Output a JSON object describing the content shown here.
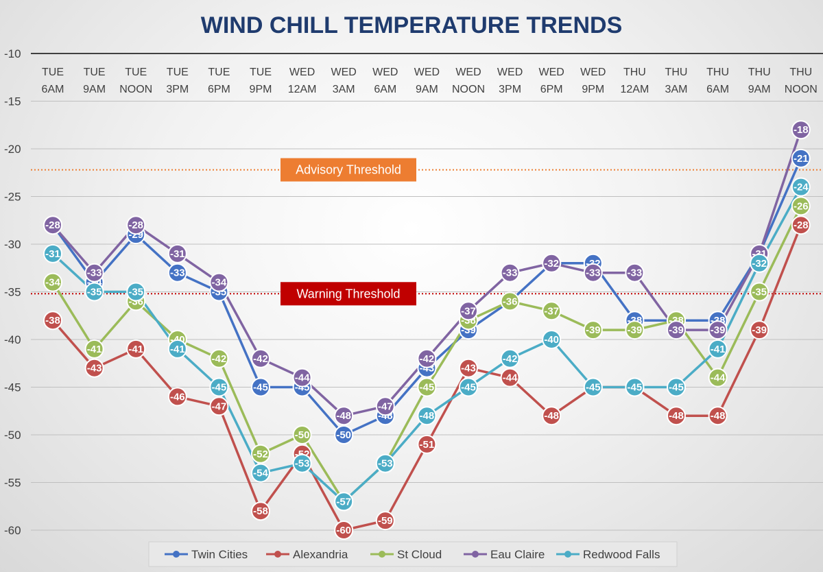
{
  "chart_data": {
    "type": "line",
    "title": "WIND CHILL TEMPERATURE TRENDS",
    "xlabel": "",
    "ylabel": "",
    "ylim": [
      -60,
      -10
    ],
    "yticks": [
      -10,
      -15,
      -20,
      -25,
      -30,
      -35,
      -40,
      -45,
      -50,
      -55,
      -60
    ],
    "grid": true,
    "legend_position": "bottom",
    "categories": [
      [
        "TUE",
        "6AM"
      ],
      [
        "TUE",
        "9AM"
      ],
      [
        "TUE",
        "NOON"
      ],
      [
        "TUE",
        "3PM"
      ],
      [
        "TUE",
        "6PM"
      ],
      [
        "TUE",
        "9PM"
      ],
      [
        "WED",
        "12AM"
      ],
      [
        "WED",
        "3AM"
      ],
      [
        "WED",
        "6AM"
      ],
      [
        "WED",
        "9AM"
      ],
      [
        "WED",
        "NOON"
      ],
      [
        "WED",
        "3PM"
      ],
      [
        "WED",
        "6PM"
      ],
      [
        "WED",
        "9PM"
      ],
      [
        "THU",
        "12AM"
      ],
      [
        "THU",
        "3AM"
      ],
      [
        "THU",
        "6AM"
      ],
      [
        "THU",
        "9AM"
      ],
      [
        "THU",
        "NOON"
      ]
    ],
    "thresholds": [
      {
        "label": "Advisory Threshold",
        "value": -22.2,
        "color": "#ed7d31"
      },
      {
        "label": "Warning Threshold",
        "value": -35.2,
        "color": "#c00000"
      }
    ],
    "series": [
      {
        "name": "Twin Cities",
        "color": "#4472c4",
        "values": [
          -28,
          -34,
          -29,
          -33,
          -35,
          -45,
          -45,
          -50,
          -48,
          -43,
          -39,
          -36,
          -32,
          -32,
          -38,
          -38,
          -38,
          -31,
          -21
        ]
      },
      {
        "name": "Alexandria",
        "color": "#c0504d",
        "values": [
          -38,
          -43,
          -41,
          -46,
          -47,
          -58,
          -52,
          -60,
          -59,
          -51,
          -43,
          -44,
          -48,
          -45,
          -45,
          -48,
          -48,
          -39,
          -28
        ]
      },
      {
        "name": "St Cloud",
        "color": "#9bbb59",
        "values": [
          -34,
          -41,
          -36,
          -40,
          -42,
          -52,
          -50,
          -57,
          -53,
          -45,
          -38,
          -36,
          -37,
          -39,
          -39,
          -38,
          -44,
          -35,
          -26
        ]
      },
      {
        "name": "Eau Claire",
        "color": "#8064a2",
        "values": [
          -28,
          -33,
          -28,
          -31,
          -34,
          -42,
          -44,
          -48,
          -47,
          -42,
          -37,
          -33,
          -32,
          -33,
          -33,
          -39,
          -39,
          -31,
          -18
        ]
      },
      {
        "name": "Redwood Falls",
        "color": "#4bacc6",
        "values": [
          -31,
          -35,
          -35,
          -41,
          -45,
          -54,
          -53,
          -57,
          -53,
          -48,
          -45,
          -42,
          -40,
          -45,
          -45,
          -45,
          -41,
          -32,
          -24
        ]
      }
    ]
  }
}
